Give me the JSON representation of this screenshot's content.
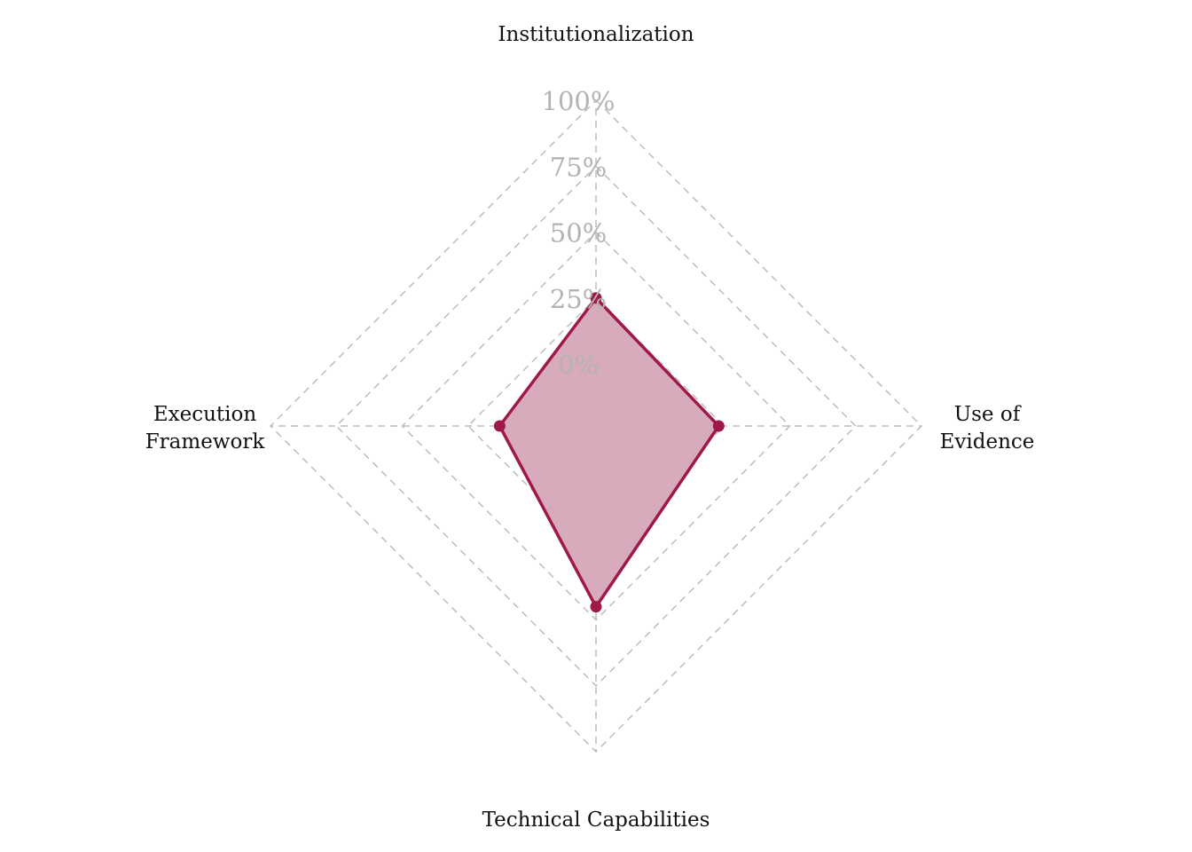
{
  "chart_data": {
    "type": "radar",
    "axes": [
      "Institutionalization",
      "Use of Evidence",
      "Technical Capabilities",
      "Execution Framework"
    ],
    "axis_labels": [
      [
        "Institutionalization"
      ],
      [
        "Use of",
        "Evidence"
      ],
      [
        "Technical Capabilities"
      ],
      [
        "Execution",
        "Framework"
      ]
    ],
    "tick_labels": [
      "0%",
      "25%",
      "50%",
      "75%",
      "100%"
    ],
    "tick_values": [
      0,
      25,
      50,
      75,
      100
    ],
    "range": [
      0,
      100
    ],
    "grid": true,
    "series": [
      {
        "values": [
          25,
          23,
          45,
          13
        ],
        "color": "#a0174a",
        "fill": "#d6a6b8"
      }
    ]
  }
}
